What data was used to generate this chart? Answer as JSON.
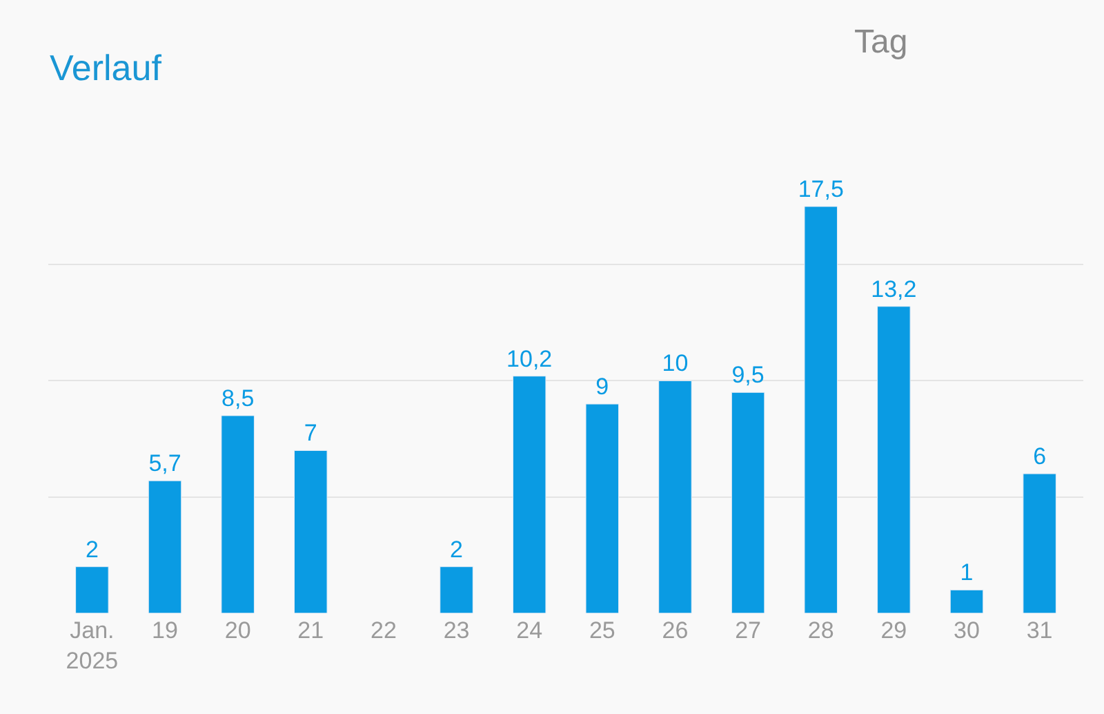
{
  "chart_data": {
    "type": "bar",
    "title": "Verlauf",
    "annotations": [
      "Tag"
    ],
    "categories": [
      "Jan.\n2025",
      "19",
      "20",
      "21",
      "22",
      "23",
      "24",
      "25",
      "26",
      "27",
      "28",
      "29",
      "30",
      "31"
    ],
    "values": [
      2,
      5.7,
      8.5,
      7,
      null,
      2,
      10.2,
      9,
      10,
      9.5,
      17.5,
      13.2,
      1,
      6
    ],
    "value_labels": [
      "2",
      "5,7",
      "8,5",
      "7",
      null,
      "2",
      "10,2",
      "9",
      "10",
      "9,5",
      "17,5",
      "13,2",
      "1",
      "6"
    ],
    "color": "#0a9be3",
    "grid": "y",
    "tick_labels": "x"
  }
}
